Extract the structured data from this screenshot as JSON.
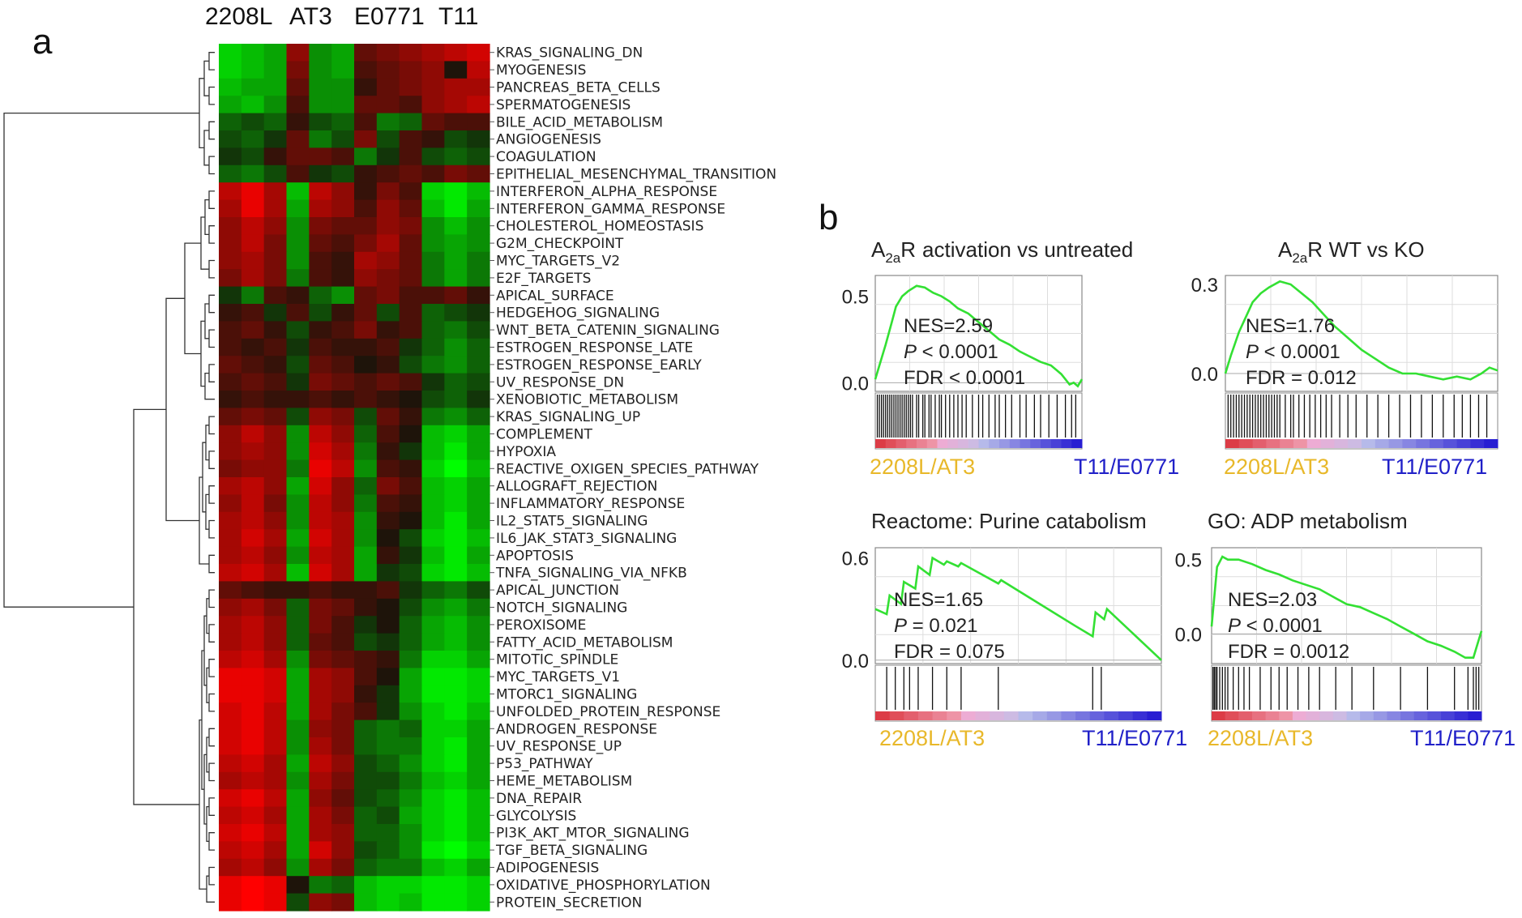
{
  "panel_a_letter": "a",
  "panel_b_letter": "b",
  "chart_data": [
    {
      "type": "heatmap",
      "title": "",
      "column_groups": [
        "2208L",
        "AT3",
        "E0771",
        "T11"
      ],
      "columns_per_group": 3,
      "color_scale": {
        "low": "#00ff00",
        "mid": "#000000",
        "high": "#ff0000",
        "range": [
          -1,
          1
        ]
      },
      "rows": [
        "KRAS_SIGNALING_DN",
        "MYOGENESIS",
        "PANCREAS_BETA_CELLS",
        "SPERMATOGENESIS",
        "BILE_ACID_METABOLISM",
        "ANGIOGENESIS",
        "COAGULATION",
        "EPITHELIAL_MESENCHYMAL_TRANSITION",
        "INTERFERON_ALPHA_RESPONSE",
        "INTERFERON_GAMMA_RESPONSE",
        "CHOLESTEROL_HOMEOSTASIS",
        "G2M_CHECKPOINT",
        "MYC_TARGETS_V2",
        "E2F_TARGETS",
        "APICAL_SURFACE",
        "HEDGEHOG_SIGNALING",
        "WNT_BETA_CATENIN_SIGNALING",
        "ESTROGEN_RESPONSE_LATE",
        "ESTROGEN_RESPONSE_EARLY",
        "UV_RESPONSE_DN",
        "XENOBIOTIC_METABOLISM",
        "KRAS_SIGNALING_UP",
        "COMPLEMENT",
        "HYPOXIA",
        "REACTIVE_OXIGEN_SPECIES_PATHWAY",
        "ALLOGRAFT_REJECTION",
        "INFLAMMATORY_RESPONSE",
        "IL2_STAT5_SIGNALING",
        "IL6_JAK_STAT3_SIGNALING",
        "APOPTOSIS",
        "TNFA_SIGNALING_VIA_NFKB",
        "APICAL_JUNCTION",
        "NOTCH_SIGNALING",
        "PEROXISOME",
        "FATTY_ACID_METABOLISM",
        "MITOTIC_SPINDLE",
        "MYC_TARGETS_V1",
        "MTORC1_SIGNALING",
        "UNFOLDED_PROTEIN_RESPONSE",
        "ANDROGEN_RESPONSE",
        "UV_RESPONSE_UP",
        "P53_PATHWAY",
        "HEME_METABOLISM",
        "DNA_REPAIR",
        "GLYCOLYSIS",
        "PI3K_AKT_MTOR_SIGNALING",
        "TGF_BETA_SIGNALING",
        "ADIPOGENESIS",
        "OXIDATIVE_PHOSPHORYLATION",
        "PROTEIN_SECRETION"
      ],
      "values": [
        [
          -0.8,
          -0.7,
          -0.6,
          0.5,
          -0.5,
          -0.6,
          0.3,
          0.4,
          0.5,
          0.6,
          0.7,
          0.8
        ],
        [
          -0.8,
          -0.7,
          -0.6,
          0.4,
          -0.5,
          -0.6,
          0.2,
          0.3,
          0.4,
          0.5,
          0.0,
          0.7
        ],
        [
          -0.7,
          -0.6,
          -0.6,
          0.3,
          -0.5,
          -0.5,
          0.1,
          0.3,
          0.4,
          0.5,
          0.6,
          0.6
        ],
        [
          -0.6,
          -0.7,
          -0.5,
          0.2,
          -0.5,
          -0.5,
          0.3,
          0.3,
          0.2,
          0.5,
          0.6,
          0.7
        ],
        [
          -0.3,
          -0.2,
          -0.3,
          0.1,
          -0.2,
          -0.3,
          0.2,
          -0.4,
          -0.3,
          0.3,
          0.2,
          0.2
        ],
        [
          -0.2,
          -0.3,
          -0.1,
          0.3,
          -0.4,
          -0.2,
          0.4,
          -0.2,
          0.2,
          0.1,
          -0.2,
          -0.1
        ],
        [
          -0.1,
          -0.2,
          0.1,
          0.3,
          0.3,
          0.2,
          -0.4,
          -0.1,
          0.2,
          -0.2,
          -0.3,
          -0.2
        ],
        [
          -0.3,
          -0.4,
          -0.2,
          0.2,
          -0.1,
          -0.2,
          0.1,
          0.2,
          0.3,
          0.2,
          0.4,
          0.3
        ],
        [
          0.7,
          0.9,
          0.6,
          -0.7,
          0.7,
          0.5,
          0.1,
          0.4,
          0.2,
          -0.8,
          -0.9,
          -0.7
        ],
        [
          0.6,
          0.9,
          0.6,
          -0.6,
          0.6,
          0.5,
          0.2,
          0.5,
          0.3,
          -0.7,
          -0.9,
          -0.6
        ],
        [
          0.5,
          0.7,
          0.5,
          -0.5,
          0.4,
          0.3,
          0.3,
          0.5,
          0.4,
          -0.5,
          -0.7,
          -0.5
        ],
        [
          0.5,
          0.7,
          0.4,
          -0.5,
          0.3,
          0.2,
          0.4,
          0.6,
          0.3,
          -0.5,
          -0.6,
          -0.5
        ],
        [
          0.5,
          0.6,
          0.4,
          -0.5,
          0.2,
          0.1,
          0.6,
          0.5,
          0.3,
          -0.4,
          -0.6,
          -0.4
        ],
        [
          0.4,
          0.6,
          0.4,
          -0.4,
          0.2,
          0.1,
          0.5,
          0.4,
          0.3,
          -0.4,
          -0.6,
          -0.4
        ],
        [
          -0.1,
          -0.4,
          0.2,
          0.1,
          -0.3,
          -0.5,
          0.3,
          0.4,
          0.2,
          0.2,
          0.3,
          0.1
        ],
        [
          0.1,
          0.2,
          -0.1,
          0.2,
          -0.2,
          0.1,
          0.3,
          -0.2,
          0.2,
          -0.3,
          -0.2,
          -0.1
        ],
        [
          0.2,
          0.3,
          0.1,
          -0.2,
          0.1,
          0.2,
          0.4,
          0.1,
          0.2,
          -0.3,
          -0.4,
          -0.2
        ],
        [
          0.2,
          0.1,
          0.2,
          -0.1,
          0.2,
          0.1,
          0.1,
          0.2,
          -0.1,
          -0.3,
          -0.5,
          -0.3
        ],
        [
          0.3,
          0.2,
          0.1,
          -0.2,
          0.3,
          0.2,
          0.0,
          0.1,
          -0.2,
          -0.4,
          -0.5,
          -0.3
        ],
        [
          0.2,
          0.3,
          0.2,
          -0.1,
          0.4,
          0.3,
          0.2,
          0.3,
          0.2,
          -0.1,
          -0.3,
          -0.2
        ],
        [
          0.1,
          0.2,
          0.1,
          0.1,
          0.2,
          0.1,
          0.2,
          0.1,
          0.0,
          -0.2,
          -0.3,
          -0.1
        ],
        [
          0.3,
          0.4,
          0.3,
          -0.2,
          0.5,
          0.4,
          -0.2,
          0.3,
          0.1,
          -0.4,
          -0.5,
          -0.3
        ],
        [
          0.5,
          0.7,
          0.5,
          -0.5,
          0.7,
          0.5,
          -0.3,
          0.2,
          0.0,
          -0.7,
          -0.8,
          -0.6
        ],
        [
          0.5,
          0.6,
          0.5,
          -0.5,
          0.8,
          0.6,
          -0.4,
          0.1,
          -0.1,
          -0.7,
          -0.9,
          -0.6
        ],
        [
          0.4,
          0.5,
          0.5,
          -0.4,
          0.9,
          0.7,
          -0.5,
          0.2,
          0.1,
          -0.8,
          -1.0,
          -0.7
        ],
        [
          0.6,
          0.7,
          0.5,
          -0.6,
          0.8,
          0.5,
          -0.3,
          0.4,
          0.2,
          -0.7,
          -0.8,
          -0.6
        ],
        [
          0.5,
          0.7,
          0.4,
          -0.5,
          0.7,
          0.5,
          -0.4,
          0.2,
          0.1,
          -0.7,
          -0.8,
          -0.6
        ],
        [
          0.6,
          0.7,
          0.5,
          -0.5,
          0.7,
          0.6,
          -0.5,
          0.1,
          0.0,
          -0.7,
          -0.9,
          -0.6
        ],
        [
          0.6,
          0.8,
          0.6,
          -0.6,
          0.8,
          0.6,
          -0.5,
          0.0,
          -0.2,
          -0.8,
          -0.9,
          -0.7
        ],
        [
          0.6,
          0.7,
          0.5,
          -0.5,
          0.7,
          0.6,
          -0.6,
          0.1,
          -0.1,
          -0.7,
          -0.9,
          -0.6
        ],
        [
          0.7,
          0.8,
          0.6,
          -0.7,
          0.8,
          0.6,
          -0.6,
          -0.1,
          -0.2,
          -0.8,
          -0.9,
          -0.7
        ],
        [
          0.3,
          0.2,
          0.1,
          0.1,
          0.2,
          0.1,
          0.1,
          0.2,
          -0.1,
          -0.3,
          -0.4,
          -0.2
        ],
        [
          0.5,
          0.6,
          0.4,
          -0.3,
          0.4,
          0.3,
          0.1,
          0.0,
          -0.2,
          -0.5,
          -0.6,
          -0.4
        ],
        [
          0.6,
          0.7,
          0.5,
          -0.3,
          0.4,
          0.2,
          -0.1,
          0.0,
          -0.3,
          -0.6,
          -0.7,
          -0.5
        ],
        [
          0.6,
          0.7,
          0.5,
          -0.3,
          0.3,
          0.2,
          -0.2,
          -0.1,
          -0.3,
          -0.6,
          -0.7,
          -0.5
        ],
        [
          0.7,
          0.8,
          0.6,
          -0.5,
          0.4,
          0.3,
          0.2,
          0.1,
          -0.4,
          -0.8,
          -0.8,
          -0.6
        ],
        [
          0.9,
          0.9,
          0.8,
          -0.6,
          0.6,
          0.5,
          0.2,
          0.0,
          -0.6,
          -0.9,
          -0.9,
          -0.8
        ],
        [
          0.9,
          0.9,
          0.8,
          -0.6,
          0.6,
          0.5,
          0.1,
          -0.1,
          -0.6,
          -0.9,
          -0.9,
          -0.8
        ],
        [
          0.8,
          0.9,
          0.7,
          -0.6,
          0.6,
          0.4,
          0.2,
          -0.1,
          -0.5,
          -0.8,
          -0.9,
          -0.7
        ],
        [
          0.8,
          0.9,
          0.7,
          -0.5,
          0.5,
          0.4,
          -0.3,
          -0.4,
          -0.3,
          -0.8,
          -0.8,
          -0.6
        ],
        [
          0.8,
          0.9,
          0.7,
          -0.5,
          0.6,
          0.4,
          -0.3,
          -0.4,
          -0.4,
          -0.8,
          -0.9,
          -0.6
        ],
        [
          0.7,
          0.8,
          0.6,
          -0.6,
          0.7,
          0.5,
          -0.2,
          -0.3,
          -0.5,
          -0.8,
          -0.9,
          -0.6
        ],
        [
          0.6,
          0.7,
          0.6,
          -0.5,
          0.6,
          0.4,
          -0.2,
          -0.2,
          -0.4,
          -0.7,
          -0.8,
          -0.6
        ],
        [
          0.8,
          0.9,
          0.7,
          -0.6,
          0.5,
          0.3,
          -0.2,
          -0.3,
          -0.5,
          -0.8,
          -0.9,
          -0.7
        ],
        [
          0.7,
          0.8,
          0.6,
          -0.6,
          0.6,
          0.4,
          -0.3,
          -0.2,
          -0.6,
          -0.8,
          -0.9,
          -0.7
        ],
        [
          0.8,
          0.9,
          0.7,
          -0.6,
          0.6,
          0.5,
          -0.3,
          -0.3,
          -0.5,
          -0.8,
          -0.9,
          -0.7
        ],
        [
          0.7,
          0.8,
          0.6,
          -0.6,
          0.8,
          0.5,
          -0.2,
          -0.3,
          -0.5,
          -0.9,
          -1.0,
          -0.8
        ],
        [
          0.6,
          0.7,
          0.5,
          -0.5,
          0.6,
          0.4,
          -0.3,
          -0.4,
          -0.4,
          -0.7,
          -0.8,
          -0.6
        ],
        [
          0.9,
          1.0,
          0.9,
          0.0,
          -0.4,
          -0.3,
          -0.7,
          -0.8,
          -0.8,
          -0.9,
          -0.9,
          -0.8
        ],
        [
          0.9,
          1.0,
          0.9,
          -0.2,
          0.5,
          0.4,
          -0.7,
          -0.8,
          -0.7,
          -0.9,
          -0.9,
          -0.8
        ]
      ]
    },
    {
      "type": "line",
      "title": "activation vs untreated",
      "title_prefix": "A",
      "title_sub": "2a",
      "title_suffix": "R",
      "ylim": [
        -0.05,
        0.62
      ],
      "yticks": [
        0.0,
        0.5
      ],
      "ytick_labels": [
        "0.0",
        "0.5"
      ],
      "x": [
        0,
        0.02,
        0.05,
        0.08,
        0.1,
        0.13,
        0.16,
        0.2,
        0.24,
        0.28,
        0.32,
        0.36,
        0.4,
        0.45,
        0.5,
        0.55,
        0.6,
        0.65,
        0.7,
        0.75,
        0.8,
        0.85,
        0.88,
        0.9,
        0.92,
        0.94,
        0.96,
        0.98,
        1.0
      ],
      "y": [
        0.02,
        0.1,
        0.22,
        0.35,
        0.44,
        0.5,
        0.53,
        0.56,
        0.55,
        0.52,
        0.5,
        0.47,
        0.43,
        0.4,
        0.35,
        0.3,
        0.25,
        0.22,
        0.18,
        0.15,
        0.12,
        0.1,
        0.07,
        0.05,
        0.02,
        -0.01,
        0.0,
        -0.02,
        0.02
      ],
      "stats": {
        "nes": "NES=2.59",
        "p_label": "P",
        "p_text": " < 0.0001",
        "fdr": "FDR < 0.0001"
      },
      "hits": [
        0.01,
        0.02,
        0.03,
        0.04,
        0.05,
        0.06,
        0.07,
        0.08,
        0.09,
        0.1,
        0.11,
        0.12,
        0.13,
        0.14,
        0.15,
        0.16,
        0.17,
        0.18,
        0.2,
        0.21,
        0.23,
        0.24,
        0.26,
        0.27,
        0.29,
        0.31,
        0.32,
        0.34,
        0.36,
        0.38,
        0.4,
        0.42,
        0.44,
        0.47,
        0.5,
        0.52,
        0.55,
        0.58,
        0.6,
        0.63,
        0.66,
        0.7,
        0.73,
        0.77,
        0.8,
        0.84,
        0.88,
        0.92,
        0.95,
        0.97
      ],
      "phenotype_left": "2208L/AT3",
      "phenotype_right": "T11/E0771"
    },
    {
      "type": "line",
      "title": "WT vs KO",
      "title_prefix": "A",
      "title_sub": "2a",
      "title_suffix": "R",
      "ylim": [
        -0.06,
        0.33
      ],
      "yticks": [
        0.0,
        0.3
      ],
      "ytick_labels": [
        "0.0",
        "0.3"
      ],
      "x": [
        0,
        0.02,
        0.05,
        0.08,
        0.1,
        0.13,
        0.16,
        0.2,
        0.24,
        0.28,
        0.32,
        0.36,
        0.4,
        0.45,
        0.5,
        0.55,
        0.6,
        0.65,
        0.7,
        0.75,
        0.8,
        0.85,
        0.9,
        0.94,
        0.97,
        1.0
      ],
      "y": [
        0.0,
        0.06,
        0.14,
        0.2,
        0.24,
        0.27,
        0.29,
        0.31,
        0.3,
        0.27,
        0.24,
        0.2,
        0.16,
        0.12,
        0.08,
        0.05,
        0.02,
        0.0,
        0.0,
        -0.01,
        -0.02,
        -0.01,
        -0.02,
        0.0,
        0.02,
        0.01
      ],
      "stats": {
        "nes": "NES=1.76",
        "p_label": "P",
        "p_text": " < 0.0001",
        "fdr": "FDR = 0.012"
      },
      "hits": [
        0.01,
        0.02,
        0.03,
        0.04,
        0.05,
        0.06,
        0.07,
        0.08,
        0.09,
        0.1,
        0.11,
        0.12,
        0.13,
        0.14,
        0.15,
        0.16,
        0.17,
        0.18,
        0.19,
        0.2,
        0.22,
        0.24,
        0.25,
        0.27,
        0.29,
        0.31,
        0.33,
        0.35,
        0.37,
        0.39,
        0.42,
        0.45,
        0.48,
        0.52,
        0.56,
        0.6,
        0.64,
        0.68,
        0.72,
        0.76,
        0.8,
        0.84,
        0.87,
        0.9,
        0.93,
        0.96
      ],
      "phenotype_left": "2208L/AT3",
      "phenotype_right": "T11/E0771"
    },
    {
      "type": "line",
      "title": "Reactome: Purine catabolism",
      "ylim": [
        -0.02,
        0.66
      ],
      "yticks": [
        0.0,
        0.6
      ],
      "ytick_labels": [
        "0.0",
        "0.6"
      ],
      "x": [
        0,
        0.04,
        0.05,
        0.09,
        0.1,
        0.14,
        0.15,
        0.19,
        0.2,
        0.24,
        0.25,
        0.29,
        0.3,
        0.43,
        0.44,
        0.7,
        0.76,
        0.77,
        0.8,
        0.81,
        1.0
      ],
      "y": [
        0.3,
        0.27,
        0.38,
        0.33,
        0.46,
        0.42,
        0.55,
        0.5,
        0.6,
        0.56,
        0.58,
        0.55,
        0.57,
        0.45,
        0.47,
        0.2,
        0.14,
        0.28,
        0.24,
        0.3,
        0.0
      ],
      "stats": {
        "nes": "NES=1.65",
        "p_label": "P",
        "p_text": " = 0.021",
        "fdr": "FDR = 0.075"
      },
      "hits": [
        0.04,
        0.07,
        0.1,
        0.12,
        0.15,
        0.2,
        0.25,
        0.3,
        0.43,
        0.76,
        0.79
      ],
      "phenotype_left": "2208L/AT3",
      "phenotype_right": "T11/E0771"
    },
    {
      "type": "line",
      "title": "GO: ADP metabolism",
      "ylim": [
        -0.2,
        0.58
      ],
      "yticks": [
        0.0,
        0.5
      ],
      "ytick_labels": [
        "0.0",
        "0.5"
      ],
      "x": [
        0,
        0.02,
        0.04,
        0.06,
        0.1,
        0.15,
        0.2,
        0.25,
        0.3,
        0.35,
        0.4,
        0.45,
        0.5,
        0.55,
        0.6,
        0.65,
        0.7,
        0.75,
        0.8,
        0.85,
        0.9,
        0.94,
        0.97,
        0.98,
        1.0
      ],
      "y": [
        0.05,
        0.45,
        0.52,
        0.5,
        0.5,
        0.47,
        0.43,
        0.4,
        0.36,
        0.33,
        0.3,
        0.25,
        0.2,
        0.18,
        0.14,
        0.1,
        0.05,
        0.0,
        -0.05,
        -0.08,
        -0.12,
        -0.16,
        -0.16,
        -0.1,
        0.02
      ],
      "stats": {
        "nes": "NES=2.03",
        "p_label": "P",
        "p_text": " < 0.0001",
        "fdr": "FDR = 0.0012"
      },
      "hits": [
        0.005,
        0.01,
        0.015,
        0.02,
        0.03,
        0.04,
        0.05,
        0.06,
        0.08,
        0.1,
        0.12,
        0.14,
        0.18,
        0.22,
        0.25,
        0.28,
        0.32,
        0.36,
        0.4,
        0.46,
        0.52,
        0.6,
        0.7,
        0.8,
        0.9,
        0.95,
        0.97,
        0.98,
        0.99
      ],
      "phenotype_left": "2208L/AT3",
      "phenotype_right": "T11/E0771"
    }
  ],
  "colors": {
    "curve": "#33e033",
    "pheno_left": "#e8b82a",
    "pheno_right": "#2020c8",
    "grid": "#dddddd",
    "axis": "#888888"
  }
}
